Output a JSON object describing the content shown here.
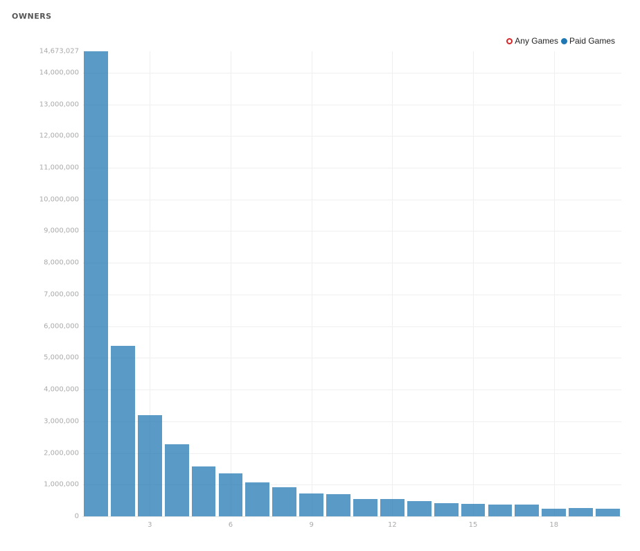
{
  "header": {
    "title": "OWNERS"
  },
  "legend": [
    {
      "label": "Any Games",
      "style": "hollow",
      "color": "#d62728"
    },
    {
      "label": "Paid Games",
      "style": "filled",
      "color": "#1f77b4"
    }
  ],
  "chart_data": {
    "type": "bar",
    "title": "OWNERS",
    "xlabel": "",
    "ylabel": "",
    "ylim": [
      0,
      14673027
    ],
    "grid": true,
    "legend_position": "top-right",
    "x_ticks": [
      3,
      6,
      9,
      12,
      15,
      18
    ],
    "y_ticks": [
      0,
      1000000,
      2000000,
      3000000,
      4000000,
      5000000,
      6000000,
      7000000,
      8000000,
      9000000,
      10000000,
      11000000,
      12000000,
      13000000,
      14000000,
      14673027
    ],
    "y_tick_labels": [
      "0",
      "1,000,000",
      "2,000,000",
      "3,000,000",
      "4,000,000",
      "5,000,000",
      "6,000,000",
      "7,000,000",
      "8,000,000",
      "9,000,000",
      "10,000,000",
      "11,000,000",
      "12,000,000",
      "13,000,000",
      "14,000,000",
      "14,673,027"
    ],
    "categories": [
      1,
      2,
      3,
      4,
      5,
      6,
      7,
      8,
      9,
      10,
      11,
      12,
      13,
      14,
      15,
      16,
      17,
      18,
      19,
      20
    ],
    "series": [
      {
        "name": "Paid Games",
        "color": "#1f77b4",
        "values": [
          14673027,
          5380000,
          3190000,
          2280000,
          1580000,
          1360000,
          1070000,
          920000,
          720000,
          700000,
          550000,
          550000,
          480000,
          420000,
          390000,
          370000,
          370000,
          240000,
          260000,
          240000
        ]
      }
    ]
  }
}
